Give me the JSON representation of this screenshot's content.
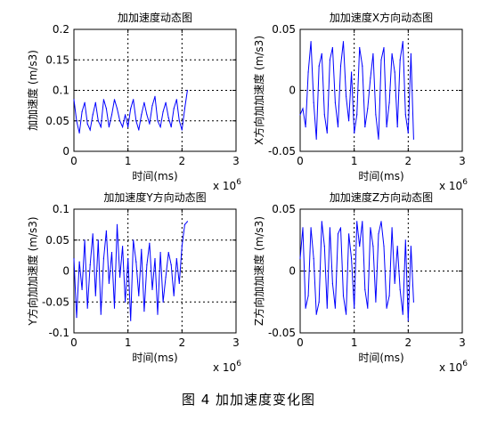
{
  "caption": "图 4  加加速度变化图",
  "chart_data": [
    {
      "type": "line",
      "title": "加加速度动态图",
      "xlabel": "时间(ms)",
      "ylabel": "加加速度 (m/s3)",
      "x_multiplier": "x 10",
      "x_multiplier_exp": "6",
      "xlim": [
        0,
        3
      ],
      "ylim": [
        0,
        0.2
      ],
      "xticks": [
        0,
        1,
        2,
        3
      ],
      "xtick_labels": [
        "0",
        "1",
        "2",
        "3"
      ],
      "yticks": [
        0,
        0.05,
        0.1,
        0.15,
        0.2
      ],
      "ytick_labels": [
        "0",
        "0.05",
        "0.1",
        "0.15",
        "0.2"
      ],
      "grid": true,
      "color": "#0000ff",
      "x": [
        0.0,
        0.05,
        0.1,
        0.15,
        0.2,
        0.25,
        0.3,
        0.35,
        0.4,
        0.45,
        0.5,
        0.55,
        0.6,
        0.65,
        0.7,
        0.75,
        0.8,
        0.85,
        0.9,
        0.95,
        1.0,
        1.05,
        1.1,
        1.15,
        1.2,
        1.25,
        1.3,
        1.35,
        1.4,
        1.45,
        1.5,
        1.55,
        1.6,
        1.65,
        1.7,
        1.75,
        1.8,
        1.85,
        1.9,
        1.95,
        2.0,
        2.05,
        2.1
      ],
      "y": [
        0.085,
        0.05,
        0.03,
        0.065,
        0.08,
        0.045,
        0.035,
        0.06,
        0.08,
        0.05,
        0.04,
        0.085,
        0.07,
        0.04,
        0.06,
        0.085,
        0.07,
        0.05,
        0.04,
        0.06,
        0.04,
        0.07,
        0.085,
        0.05,
        0.035,
        0.06,
        0.08,
        0.06,
        0.045,
        0.075,
        0.09,
        0.05,
        0.04,
        0.065,
        0.08,
        0.055,
        0.04,
        0.07,
        0.085,
        0.05,
        0.035,
        0.07,
        0.1
      ]
    },
    {
      "type": "line",
      "title": "加加速度X方向动态图",
      "xlabel": "时间(ms)",
      "ylabel": "X方向加加速度 (m/s3)",
      "x_multiplier": "x 10",
      "x_multiplier_exp": "6",
      "xlim": [
        0,
        3
      ],
      "ylim": [
        -0.05,
        0.05
      ],
      "xticks": [
        0,
        1,
        2,
        3
      ],
      "xtick_labels": [
        "0",
        "1",
        "2",
        "3"
      ],
      "yticks": [
        -0.05,
        0,
        0.05
      ],
      "ytick_labels": [
        "-0.05",
        "0",
        "0.05"
      ],
      "grid": true,
      "color": "#0000ff",
      "x": [
        0.0,
        0.05,
        0.1,
        0.15,
        0.2,
        0.25,
        0.3,
        0.35,
        0.4,
        0.45,
        0.5,
        0.55,
        0.6,
        0.65,
        0.7,
        0.75,
        0.8,
        0.85,
        0.9,
        0.95,
        1.0,
        1.05,
        1.1,
        1.15,
        1.2,
        1.25,
        1.3,
        1.35,
        1.4,
        1.45,
        1.5,
        1.55,
        1.6,
        1.65,
        1.7,
        1.75,
        1.8,
        1.85,
        1.9,
        1.95,
        2.0,
        2.05,
        2.1
      ],
      "y": [
        -0.02,
        -0.015,
        -0.03,
        0.015,
        0.04,
        -0.01,
        -0.04,
        0.02,
        0.03,
        -0.02,
        -0.035,
        0.025,
        0.035,
        -0.01,
        -0.03,
        0.02,
        0.04,
        -0.005,
        -0.025,
        0.015,
        -0.035,
        -0.02,
        0.035,
        0.02,
        -0.03,
        -0.015,
        0.01,
        0.03,
        -0.02,
        -0.04,
        0.025,
        0.035,
        -0.03,
        -0.01,
        0.03,
        0.015,
        -0.03,
        0.025,
        0.04,
        -0.02,
        -0.035,
        0.03,
        -0.04
      ]
    },
    {
      "type": "line",
      "title": "加加速度Y方向动态图",
      "xlabel": "时间(ms)",
      "ylabel": "Y方向加加速度 (m/s3)",
      "x_multiplier": "x 10",
      "x_multiplier_exp": "6",
      "xlim": [
        0,
        3
      ],
      "ylim": [
        -0.1,
        0.1
      ],
      "xticks": [
        0,
        1,
        2,
        3
      ],
      "xtick_labels": [
        "0",
        "1",
        "2",
        "3"
      ],
      "yticks": [
        -0.1,
        -0.05,
        0,
        0.05,
        0.1
      ],
      "ytick_labels": [
        "-0.1",
        "-0.05",
        "0",
        "0.05",
        "0.1"
      ],
      "grid": true,
      "color": "#0000ff",
      "x": [
        0.0,
        0.05,
        0.1,
        0.15,
        0.2,
        0.25,
        0.3,
        0.35,
        0.4,
        0.45,
        0.5,
        0.55,
        0.6,
        0.65,
        0.7,
        0.75,
        0.8,
        0.85,
        0.9,
        0.95,
        1.0,
        1.05,
        1.1,
        1.15,
        1.2,
        1.25,
        1.3,
        1.35,
        1.4,
        1.45,
        1.5,
        1.55,
        1.6,
        1.65,
        1.7,
        1.75,
        1.8,
        1.85,
        1.9,
        1.95,
        2.0,
        2.05,
        2.1
      ],
      "y": [
        0.02,
        -0.075,
        0.015,
        -0.03,
        0.05,
        -0.06,
        0.01,
        0.06,
        -0.04,
        0.05,
        -0.07,
        0.02,
        0.065,
        -0.02,
        0.03,
        -0.06,
        0.075,
        -0.01,
        0.04,
        -0.05,
        0.02,
        -0.08,
        0.05,
        0.015,
        -0.04,
        0.035,
        -0.065,
        0.01,
        0.045,
        -0.03,
        0.02,
        -0.07,
        0.03,
        -0.05,
        -0.01,
        0.03,
        0.01,
        -0.04,
        0.02,
        -0.02,
        0.04,
        0.075,
        0.08
      ]
    },
    {
      "type": "line",
      "title": "加加速度Z方向动态图",
      "xlabel": "时间(ms)",
      "ylabel": "Z方向加加速度 (m/s3)",
      "x_multiplier": "x 10",
      "x_multiplier_exp": "6",
      "xlim": [
        0,
        3
      ],
      "ylim": [
        -0.05,
        0.05
      ],
      "xticks": [
        0,
        1,
        2,
        3
      ],
      "xtick_labels": [
        "0",
        "1",
        "2",
        "3"
      ],
      "yticks": [
        -0.05,
        0,
        0.05
      ],
      "ytick_labels": [
        "-0.05",
        "0",
        "0.05"
      ],
      "grid": true,
      "color": "#0000ff",
      "x": [
        0.0,
        0.05,
        0.1,
        0.15,
        0.2,
        0.25,
        0.3,
        0.35,
        0.4,
        0.45,
        0.5,
        0.55,
        0.6,
        0.65,
        0.7,
        0.75,
        0.8,
        0.85,
        0.9,
        0.95,
        1.0,
        1.05,
        1.1,
        1.15,
        1.2,
        1.25,
        1.3,
        1.35,
        1.4,
        1.45,
        1.5,
        1.55,
        1.6,
        1.65,
        1.7,
        1.75,
        1.8,
        1.85,
        1.9,
        1.95,
        2.0,
        2.05,
        2.1
      ],
      "y": [
        0.01,
        0.035,
        -0.03,
        -0.02,
        0.035,
        0.01,
        -0.035,
        -0.025,
        0.04,
        0.02,
        -0.03,
        0.035,
        -0.01,
        -0.03,
        0.03,
        0.035,
        -0.02,
        -0.035,
        0.03,
        0.01,
        -0.03,
        0.04,
        0.02,
        0.04,
        -0.015,
        -0.03,
        0.035,
        0.02,
        -0.025,
        0.03,
        0.04,
        0.02,
        -0.03,
        -0.02,
        0.035,
        -0.01,
        0.02,
        -0.015,
        -0.035,
        0.025,
        -0.04,
        0.02,
        -0.025
      ]
    }
  ]
}
